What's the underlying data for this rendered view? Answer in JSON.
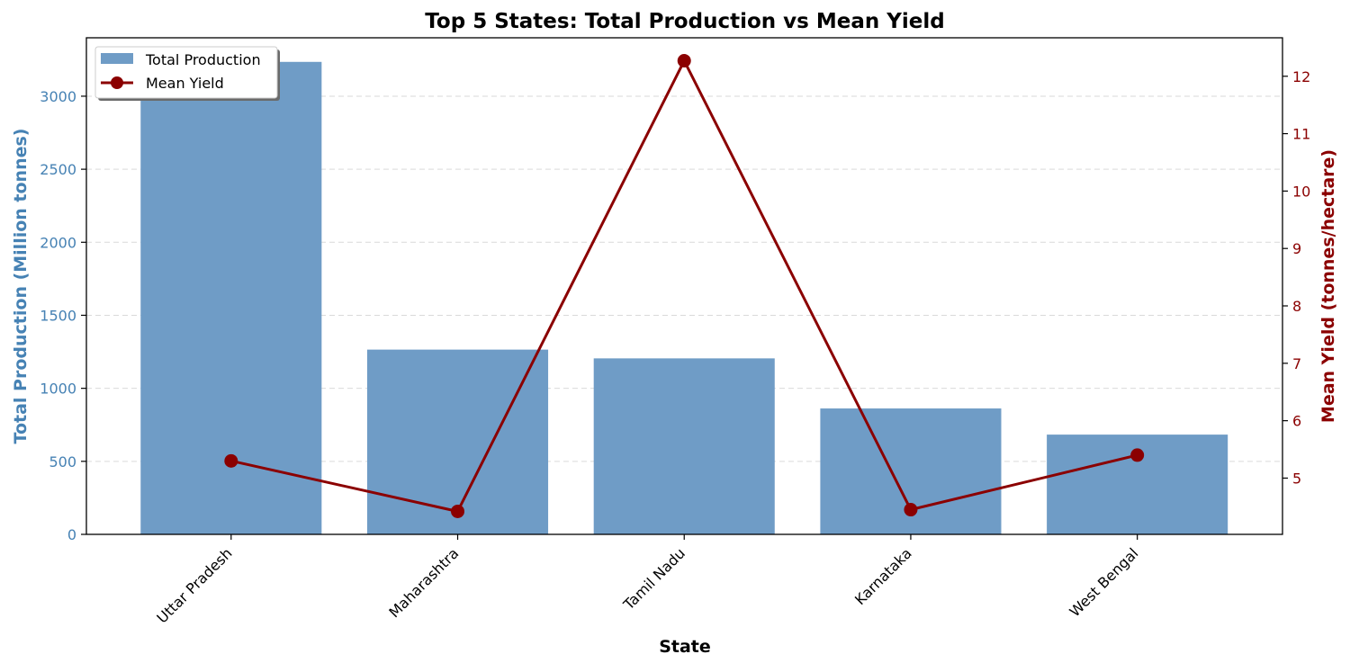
{
  "chart_data": {
    "type": "bar",
    "title": "Top 5 States: Total Production vs Mean Yield",
    "xlabel": "State",
    "categories": [
      "Uttar Pradesh",
      "Maharashtra",
      "Tamil Nadu",
      "Karnataka",
      "West Bengal"
    ],
    "series": [
      {
        "name": "Total Production",
        "type": "bar",
        "axis": "left",
        "color": "#6f9cc6",
        "values": [
          3235,
          1265,
          1205,
          862,
          683
        ]
      },
      {
        "name": "Mean Yield",
        "type": "line",
        "axis": "right",
        "color": "#8b0000",
        "marker": "circle",
        "values": [
          5.3,
          4.42,
          12.27,
          4.45,
          5.4
        ]
      }
    ],
    "y_left": {
      "label": "Total Production (Million tonnes)",
      "ylim": [
        0,
        3400
      ],
      "ticks": [
        0,
        500,
        1000,
        1500,
        2000,
        2500,
        3000
      ],
      "color": "#4682b4"
    },
    "y_right": {
      "label": "Mean Yield (tonnes/hectare)",
      "ylim": [
        4.02,
        12.67
      ],
      "ticks": [
        5,
        6,
        7,
        8,
        9,
        10,
        11,
        12
      ],
      "color": "#8b0000"
    },
    "grid": "y-dashed",
    "legend": "top-left"
  }
}
